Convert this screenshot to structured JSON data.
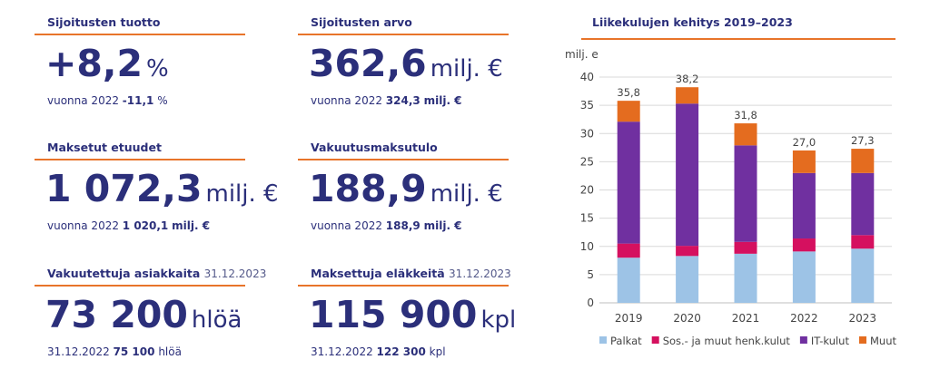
{
  "kpis": [
    {
      "title": "Sijoitusten tuotto",
      "date": "",
      "value": "+8,2",
      "unit": "%",
      "sub_prefix": "vuonna 2022",
      "sub_value": "-11,1",
      "sub_unit": "%"
    },
    {
      "title": "Sijoitusten arvo",
      "date": "",
      "value": "362,6",
      "unit": "milj. €",
      "sub_prefix": "vuonna 2022",
      "sub_value": "324,3",
      "sub_unit": "milj. €"
    },
    {
      "title": "Maksetut etuudet",
      "date": "",
      "value": "1 072,3",
      "unit": "milj. €",
      "sub_prefix": "vuonna 2022",
      "sub_value": "1 020,1",
      "sub_unit": "milj. €"
    },
    {
      "title": "Vakuutusmaksutulo",
      "date": "",
      "value": "188,9",
      "unit": "milj. €",
      "sub_prefix": "vuonna 2022",
      "sub_value": "188,9",
      "sub_unit": "milj. €"
    },
    {
      "title": "Vakuutettuja asiakkaita",
      "date": "31.12.2023",
      "value": "73 200",
      "unit": "hlöä",
      "sub_prefix": "31.12.2022",
      "sub_value": "75 100",
      "sub_unit": "hlöä"
    },
    {
      "title": "Maksettuja eläkkeitä",
      "date": "31.12.2023",
      "value": "115 900",
      "unit": "kpl",
      "sub_prefix": "31.12.2022",
      "sub_value": "122 300",
      "sub_unit": "kpl"
    }
  ],
  "chart_data": {
    "type": "bar",
    "stacked": true,
    "title": "Liikekulujen kehitys 2019–2023",
    "xlabel": "",
    "ylabel": "milj. e",
    "ylim": [
      0,
      40
    ],
    "yticks": [
      0,
      5,
      10,
      15,
      20,
      25,
      30,
      35,
      40
    ],
    "categories": [
      "2019",
      "2020",
      "2021",
      "2022",
      "2023"
    ],
    "totals": [
      35.8,
      38.2,
      31.8,
      27.0,
      27.3
    ],
    "total_labels": [
      "35,8",
      "38,2",
      "31,8",
      "27,0",
      "27,3"
    ],
    "legend_position": "bottom",
    "grid": true,
    "series": [
      {
        "name": "Palkat",
        "color": "#9dc3e6",
        "values": [
          8.0,
          8.3,
          8.7,
          9.1,
          9.6
        ]
      },
      {
        "name": "Sos.- ja muut henk.kulut",
        "color": "#d5105f",
        "values": [
          2.5,
          1.8,
          2.1,
          2.3,
          2.4
        ]
      },
      {
        "name": "IT-kulut",
        "color": "#7030a0",
        "values": [
          21.6,
          25.2,
          17.1,
          11.6,
          11.0
        ]
      },
      {
        "name": "Muut",
        "color": "#e46c1f",
        "values": [
          3.7,
          2.9,
          3.9,
          4.0,
          4.3
        ]
      }
    ]
  }
}
